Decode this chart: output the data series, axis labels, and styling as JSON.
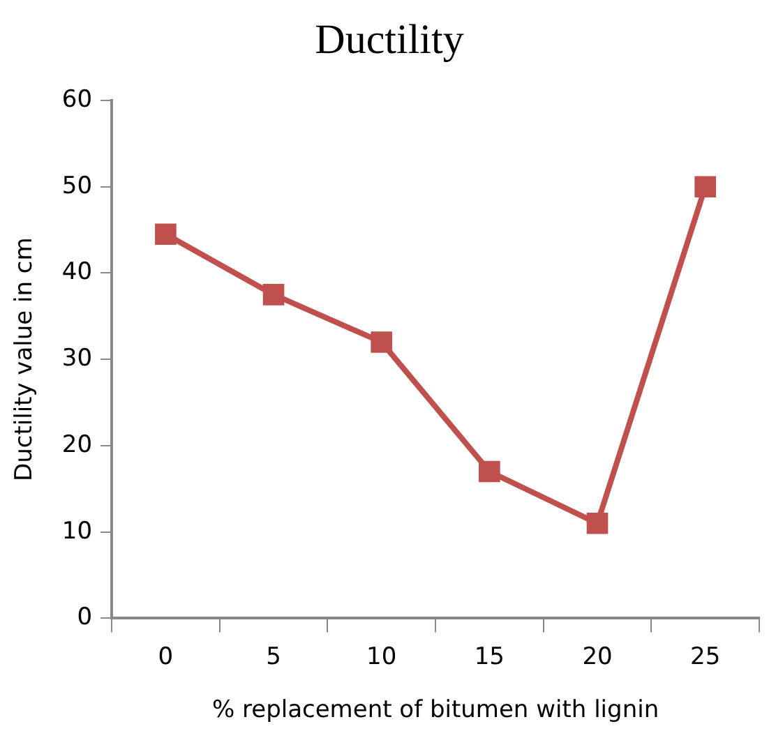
{
  "chart_data": {
    "type": "line",
    "title": "Ductility",
    "xlabel": "% replacement of bitumen with lignin",
    "ylabel": "Ductility value in cm",
    "categories": [
      "0",
      "5",
      "10",
      "15",
      "20",
      "25"
    ],
    "series": [
      {
        "color": "#c0504d",
        "values": [
          44.5,
          37.5,
          32,
          17,
          11,
          50
        ]
      }
    ],
    "ylim": [
      0,
      60
    ],
    "yticks": [
      0,
      10,
      20,
      30,
      40,
      50,
      60
    ],
    "grid": false,
    "legend": false,
    "marker": "square",
    "line_style": "solid"
  }
}
